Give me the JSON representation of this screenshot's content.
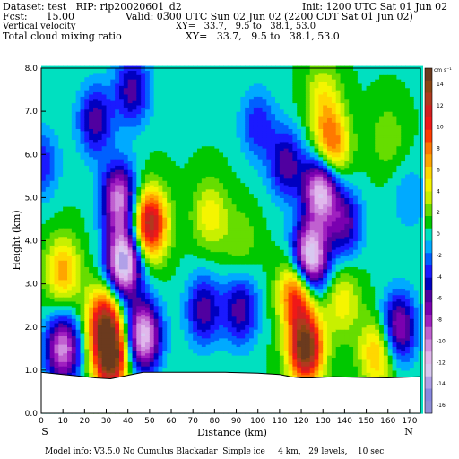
{
  "header": {
    "dataset": "Dataset: test   RIP: rip20020601_d2",
    "init": "Init: 1200 UTC Sat 01 Jun 02",
    "fcst": "Fcst:      15.00",
    "valid": "Valid: 0300 UTC Sun 02 Jun 02 (2200 CDT Sat 01 Jun 02)",
    "field1_name": "Vertical velocity",
    "field1_xy": "XY=   33.7,   9.5 to   38.1, 53.0",
    "field2_name": "Total cloud mixing ratio",
    "field2_xy": "XY=   33.7,   9.5 to   38.1, 53.0"
  },
  "footer": {
    "model_info": "Model info: V3.5.0 No Cumulus Blackadar  Simple ice     4 km,   29 levels,    10 sec"
  },
  "chart_data": {
    "type": "heatmap",
    "title": "",
    "xlabel": "Distance (km)",
    "ylabel": "Height (km)",
    "xlim": [
      0,
      175
    ],
    "ylim": [
      0,
      8
    ],
    "x_ticks": [
      "0",
      "10",
      "20",
      "30",
      "40",
      "50",
      "60",
      "70",
      "80",
      "90",
      "100",
      "110",
      "120",
      "130",
      "140",
      "150",
      "160",
      "170"
    ],
    "y_ticks": [
      "0.0",
      "1.0",
      "2.0",
      "3.0",
      "4.0",
      "5.0",
      "6.0",
      "7.0",
      "8.0"
    ],
    "left_end_label": "S",
    "right_end_label": "N",
    "colorbar_unit": "cm s⁻¹",
    "colorbar_labels": [
      "14",
      "12",
      "10",
      "8",
      "6",
      "4",
      "2",
      "0",
      "-2",
      "-4",
      "-6",
      "-8",
      "-10",
      "-12",
      "-14",
      "-16"
    ],
    "colorbar_colors": [
      "#6b3a1e",
      "#8b4513",
      "#b03a1e",
      "#d22020",
      "#f01818",
      "#ff3c00",
      "#ff7800",
      "#ffa500",
      "#ffd700",
      "#f5f500",
      "#c8f000",
      "#66dd00",
      "#00c800",
      "#00e0c0",
      "#00aaff",
      "#0060ff",
      "#1a1aff",
      "#0000c0",
      "#5000a0",
      "#7a00b0",
      "#a020c0",
      "#c060d0",
      "#d090e0",
      "#e0b8ec",
      "#d8c8f0",
      "#b0a0e8",
      "#8888e0",
      "#9090d8"
    ],
    "terrain_km": [
      [
        0,
        0.95
      ],
      [
        10,
        0.9
      ],
      [
        20,
        0.85
      ],
      [
        25,
        0.82
      ],
      [
        32,
        0.8
      ],
      [
        40,
        0.88
      ],
      [
        47,
        0.95
      ],
      [
        55,
        0.95
      ],
      [
        70,
        0.95
      ],
      [
        85,
        0.95
      ],
      [
        100,
        0.93
      ],
      [
        110,
        0.9
      ],
      [
        115,
        0.85
      ],
      [
        120,
        0.82
      ],
      [
        125,
        0.82
      ],
      [
        135,
        0.85
      ],
      [
        150,
        0.83
      ],
      [
        160,
        0.82
      ],
      [
        175,
        0.85
      ]
    ],
    "features": [
      {
        "x": 32,
        "z": 1.3,
        "value": 14
      },
      {
        "x": 29,
        "z": 2.2,
        "value": 10
      },
      {
        "x": 10,
        "z": 3.3,
        "value": 6
      },
      {
        "x": 38,
        "z": 3.5,
        "value": -14
      },
      {
        "x": 36,
        "z": 5.0,
        "value": -10
      },
      {
        "x": 50,
        "z": 4.4,
        "value": 12
      },
      {
        "x": 47,
        "z": 1.8,
        "value": -12
      },
      {
        "x": 10,
        "z": 1.5,
        "value": -10
      },
      {
        "x": 0,
        "z": 5.8,
        "value": -4
      },
      {
        "x": 25,
        "z": 6.8,
        "value": -6
      },
      {
        "x": 42,
        "z": 7.5,
        "value": -6
      },
      {
        "x": 75,
        "z": 2.4,
        "value": -6
      },
      {
        "x": 92,
        "z": 2.4,
        "value": -6
      },
      {
        "x": 78,
        "z": 4.6,
        "value": 4
      },
      {
        "x": 92,
        "z": 4.0,
        "value": 2
      },
      {
        "x": 100,
        "z": 6.7,
        "value": -4
      },
      {
        "x": 122,
        "z": 1.5,
        "value": 14
      },
      {
        "x": 118,
        "z": 2.8,
        "value": 10
      },
      {
        "x": 124,
        "z": 3.6,
        "value": -14
      },
      {
        "x": 129,
        "z": 5.2,
        "value": -12
      },
      {
        "x": 134,
        "z": 6.2,
        "value": 8
      },
      {
        "x": 130,
        "z": 7.3,
        "value": 4
      },
      {
        "x": 139,
        "z": 2.6,
        "value": 4
      },
      {
        "x": 140,
        "z": 4.4,
        "value": -6
      },
      {
        "x": 155,
        "z": 1.4,
        "value": 6
      },
      {
        "x": 165,
        "z": 2.0,
        "value": -8
      },
      {
        "x": 160,
        "z": 6.4,
        "value": 2
      },
      {
        "x": 170,
        "z": 5.0,
        "value": -2
      },
      {
        "x": 113,
        "z": 5.8,
        "value": -6
      }
    ]
  }
}
